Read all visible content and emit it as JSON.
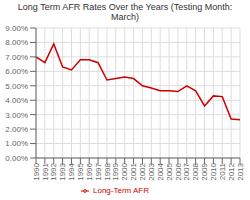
{
  "chart_data": {
    "type": "line",
    "title": "Long Term AFR Rates Over the Years (Testing Month: March)",
    "categories": [
      "1990",
      "1991",
      "1992",
      "1993",
      "1994",
      "1995",
      "1996",
      "1997",
      "1998",
      "1999",
      "2000",
      "2001",
      "2002",
      "2003",
      "2004",
      "2005",
      "2006",
      "2007",
      "2008",
      "2009",
      "2010",
      "2011",
      "2012",
      "2013"
    ],
    "series": [
      {
        "name": "Long-Term AFR",
        "color": "#cc0000",
        "values": [
          7.0,
          6.6,
          7.9,
          6.3,
          6.1,
          6.8,
          6.8,
          6.6,
          5.4,
          5.5,
          5.6,
          5.5,
          5.0,
          4.85,
          4.65,
          4.65,
          4.6,
          5.0,
          4.65,
          3.6,
          4.3,
          4.25,
          2.7,
          2.65
        ]
      }
    ],
    "ylim": [
      0.0,
      9.0
    ],
    "yticks": [
      {
        "value": 0,
        "label": "0.00%"
      },
      {
        "value": 1,
        "label": "1.00%"
      },
      {
        "value": 2,
        "label": "2.00%"
      },
      {
        "value": 3,
        "label": "3.00%"
      },
      {
        "value": 4,
        "label": "4.00%"
      },
      {
        "value": 5,
        "label": "5.00%"
      },
      {
        "value": 6,
        "label": "6.00%"
      },
      {
        "value": 7,
        "label": "7.00%"
      },
      {
        "value": 8,
        "label": "8.00%"
      },
      {
        "value": 9,
        "label": "9.00%"
      }
    ],
    "grid": true,
    "legend": "bottom"
  }
}
